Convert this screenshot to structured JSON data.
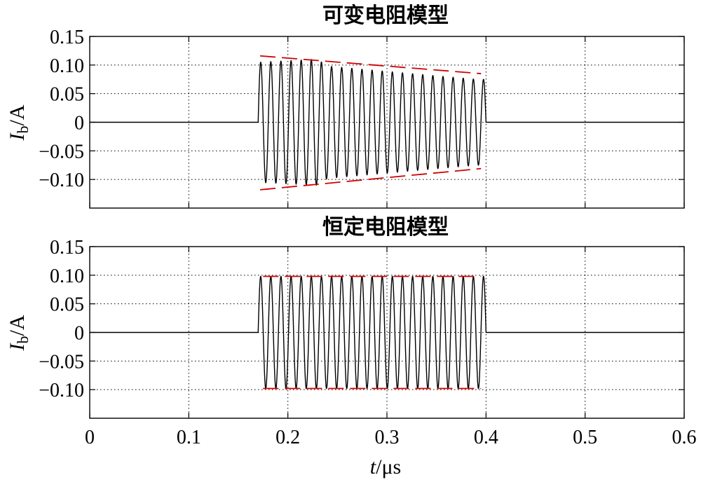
{
  "chart_data": [
    {
      "type": "line",
      "title": "可变电阻模型",
      "ylabel_main": "I",
      "ylabel_sub": "b",
      "ylabel_unit": "/A",
      "xlim": [
        0,
        0.6
      ],
      "ylim": [
        -0.15,
        0.15
      ],
      "x_ticks": [
        0,
        0.1,
        0.2,
        0.3,
        0.4,
        0.5,
        0.6
      ],
      "y_ticks": [
        0.15,
        0.1,
        0.05,
        0,
        -0.05,
        -0.1
      ],
      "y_tick_labels": [
        "0.15",
        "0.10",
        "0.05",
        "0",
        "−0.05",
        "−0.10"
      ],
      "show_x_tick_labels": false,
      "grid": true,
      "signal": {
        "name": "Ib",
        "color": "#000000",
        "t_start": 0.17,
        "t_end": 0.4,
        "cycles": 22.5,
        "peak_positive": [
          [
            0.172,
            0.105
          ],
          [
            0.23,
            0.11
          ],
          [
            0.24,
            0.098
          ],
          [
            0.39,
            0.075
          ]
        ],
        "peak_negative": [
          [
            0.178,
            -0.11
          ],
          [
            0.23,
            -0.11
          ],
          [
            0.39,
            -0.075
          ]
        ]
      },
      "envelope": {
        "color": "#d00000",
        "upper": [
          [
            0.172,
            0.116
          ],
          [
            0.395,
            0.085
          ]
        ],
        "lower": [
          [
            0.172,
            -0.118
          ],
          [
            0.395,
            -0.081
          ]
        ]
      }
    },
    {
      "type": "line",
      "title": "恒定电阻模型",
      "ylabel_main": "I",
      "ylabel_sub": "b",
      "ylabel_unit": "/A",
      "xlabel_main": "t",
      "xlabel_unit": "/μs",
      "xlim": [
        0,
        0.6
      ],
      "ylim": [
        -0.15,
        0.15
      ],
      "x_ticks": [
        0,
        0.1,
        0.2,
        0.3,
        0.4,
        0.5,
        0.6
      ],
      "x_tick_labels": [
        "0",
        "0.1",
        "0.2",
        "0.3",
        "0.4",
        "0.5",
        "0.6"
      ],
      "y_ticks": [
        0.15,
        0.1,
        0.05,
        0,
        -0.05,
        -0.1
      ],
      "y_tick_labels": [
        "0.15",
        "0.10",
        "0.05",
        "0",
        "−0.05",
        "−0.10"
      ],
      "show_x_tick_labels": true,
      "grid": true,
      "signal": {
        "name": "Ib",
        "color": "#000000",
        "t_start": 0.17,
        "t_end": 0.4,
        "cycles": 22.5,
        "amplitude": 0.098
      },
      "envelope": {
        "color": "#d00000",
        "upper": [
          [
            0.175,
            0.098
          ],
          [
            0.395,
            0.098
          ]
        ],
        "lower": [
          [
            0.175,
            -0.098
          ],
          [
            0.395,
            -0.098
          ]
        ]
      }
    }
  ]
}
